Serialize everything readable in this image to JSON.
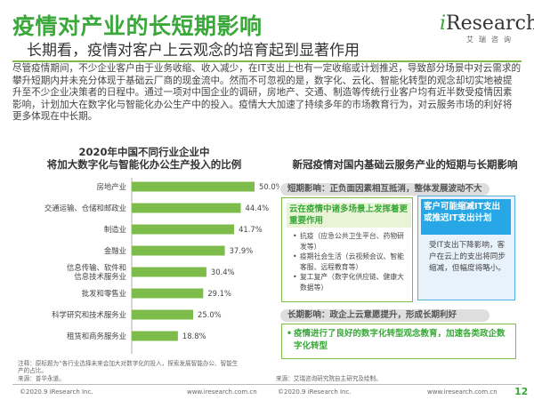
{
  "header": {
    "title": "疫情对产业的长短期影响",
    "subtitle": "长期看，疫情对客户上云观念的培育起到显著作用"
  },
  "logo": {
    "brand_i": "i",
    "brand_rest": "Research",
    "cn": "艾瑞咨询"
  },
  "intro_text": "尽管疫情期间，不少企业客户由于业务收缩、收入减少，在IT支出上也有一定收缩或计划推迟，导致部分场景中对云需求的攀升短期内并未充分体现于基础云厂商的现金流中。然而不可忽视的是，数字化、云化、智能化转型的观念却切实地被提升至不少企业决策者的日程中。通过一项对中国企业的调研，房地产、交通、制造等传统行业客户均有近半数受疫情因素影响，计划加大在数字化与智能化办公生产中的投入。疫情大大加速了持续多年的市场教育行为，对云服务市场的利好将更多体现在中长期。",
  "chart_data": {
    "type": "bar",
    "orientation": "horizontal",
    "title": "2020年中国不同行业企业中将加大数字化与智能化办公生产投入的比例",
    "title_lines": [
      "2020年中国不同行业企业中",
      "将加大数字化与智能化办公生产投入的比例"
    ],
    "categories": [
      "房地产业",
      "交通运输、仓储和邮政业",
      "制造业",
      "金融业",
      "信息传输、软件和信息技术服务业",
      "批发和零售业",
      "科学研究和技术服务业",
      "租赁和商务服务业"
    ],
    "category_lines": [
      [
        "房地产业"
      ],
      [
        "交通运输、仓储和邮政业"
      ],
      [
        "制造业"
      ],
      [
        "金融业"
      ],
      [
        "信息传输、软件和",
        "信息技术服务业"
      ],
      [
        "批发和零售业"
      ],
      [
        "科学研究和技术服务业"
      ],
      [
        "租赁和商务服务业"
      ]
    ],
    "values": [
      50.0,
      44.4,
      41.7,
      37.9,
      30.4,
      29.1,
      25.0,
      18.8
    ],
    "value_labels": [
      "50.0%",
      "44.4%",
      "41.7%",
      "37.9%",
      "30.4%",
      "29.1%",
      "25.0%",
      "18.8%"
    ],
    "xlim": [
      0,
      60
    ],
    "bar_color": "#7dbb4a",
    "grid": false
  },
  "chart_note": {
    "line1": "注释：原标题为“各行业选择未来会加大对数字化的投入，探索发展智能办公、智能生",
    "line2": "产的占比。",
    "line3": "来源：普华永道。"
  },
  "panel": {
    "title": "新冠疫情对国内基础云服务产业的短期与长期影响",
    "short_label": "短期影响：正负面因素相互抵消，整体发展波动不大",
    "left_head": "云在疫情中诸多场景上发挥着更重要作用",
    "left_items": [
      "抗疫（应急公共卫生平台、药物研发等）",
      "疫期社会生活（云视频会议、智能客服、远程教育等）",
      "复工复产（数字化供应链、健康大数据等）"
    ],
    "right_head": "客户可能缩减IT支出或推迟IT支出计划",
    "right_text": "受IT支出下降影响，客户在云上的支出将同步缩减，但幅度将略小。",
    "long_label": "长期影响：政企上云意愿提升，形成长期利好",
    "long_text": "疫情进行了良好的数字化转型观念教育，加速各类政企数字化转型",
    "source": "来源：艾瑞咨询研究院自主研究及绘制。"
  },
  "footer": {
    "copy_left": "©2020.9 iResearch Inc.",
    "site_left": "www.iresearch.com.cn",
    "copy_right": "©2020.9 iResearch Inc.",
    "site_right": "www.iresearch.com.cn",
    "page": "12"
  },
  "colors": {
    "accent_green": "#3aa83a",
    "bar_green": "#7dbb4a",
    "accent_blue": "#27a7e6"
  }
}
